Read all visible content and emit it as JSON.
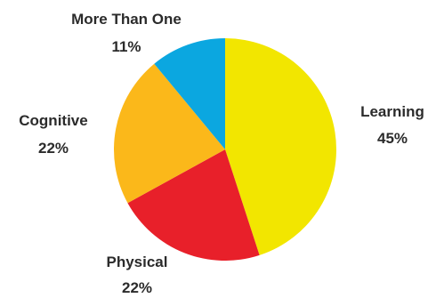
{
  "chart_data": {
    "type": "pie",
    "title": "",
    "start": "12 o'clock",
    "direction": "clockwise",
    "slices": [
      {
        "label": "Learning",
        "value": 45,
        "value_label": "45%",
        "color": "#f2e600"
      },
      {
        "label": "Physical",
        "value": 22,
        "value_label": "22%",
        "color": "#e8202a"
      },
      {
        "label": "Cognitive",
        "value": 22,
        "value_label": "22%",
        "color": "#fbb81a"
      },
      {
        "label": "More Than One",
        "value": 11,
        "value_label": "11%",
        "color": "#0ba7e0"
      }
    ],
    "legend": "none"
  }
}
